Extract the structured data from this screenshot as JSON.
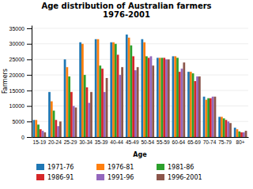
{
  "chart_data": {
    "type": "bar",
    "title": "Age distribution of Australian farmers\n1976-2001",
    "xlabel": "Age",
    "ylabel": "Farmers",
    "categories": [
      "15-19",
      "20-24",
      "25-29",
      "30-34",
      "35-39",
      "40-44",
      "45-49",
      "50-54",
      "55-59",
      "60-64",
      "65-69",
      "70-74",
      "75-79",
      "80+"
    ],
    "series": [
      {
        "name": "1971-76",
        "values": [
          5500,
          14500,
          25000,
          30500,
          31500,
          30500,
          33000,
          31500,
          25500,
          26000,
          21000,
          13000,
          6500,
          3000
        ]
      },
      {
        "name": "1976-81",
        "values": [
          5500,
          11500,
          22500,
          30000,
          31500,
          30500,
          32000,
          30500,
          25500,
          26000,
          21000,
          12000,
          6500,
          2500
        ]
      },
      {
        "name": "1981-86",
        "values": [
          4000,
          8500,
          19500,
          20000,
          23000,
          30000,
          29500,
          26000,
          25500,
          25500,
          20500,
          12500,
          6000,
          1800
        ]
      },
      {
        "name": "1986-91",
        "values": [
          2500,
          5500,
          14500,
          16000,
          22000,
          26500,
          26000,
          25500,
          25500,
          21000,
          18000,
          12500,
          5500,
          1500
        ]
      },
      {
        "name": "1991-96",
        "values": [
          2000,
          3500,
          10000,
          11000,
          14500,
          20000,
          21500,
          26000,
          25000,
          22000,
          19500,
          13000,
          5000,
          1500
        ]
      },
      {
        "name": "1996-2001",
        "values": [
          1500,
          5000,
          9500,
          14500,
          19000,
          22500,
          22500,
          23000,
          25000,
          24000,
          19500,
          13000,
          4500,
          2000
        ]
      }
    ],
    "ylim": [
      0,
      36000
    ],
    "yticks": [
      0,
      5000,
      10000,
      15000,
      20000,
      25000,
      30000,
      35000
    ],
    "grid": true,
    "legend": "bottom"
  }
}
